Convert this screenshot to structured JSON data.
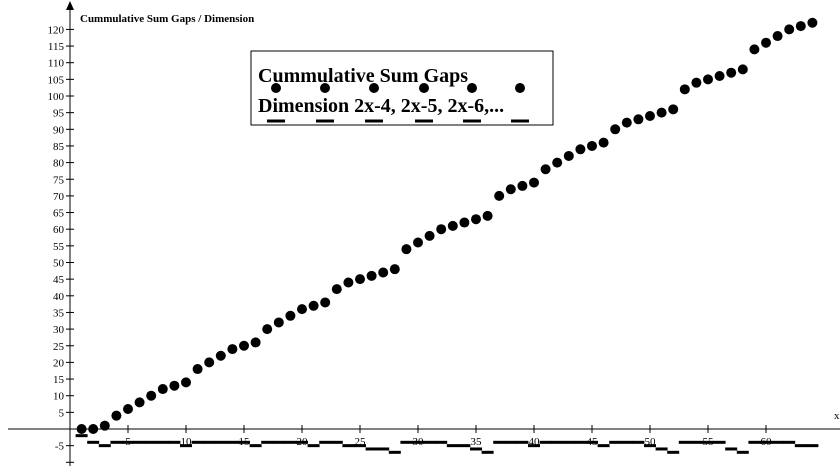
{
  "chart_data": {
    "type": "scatter",
    "title": "Cummulative Sum Gaps / Dimension",
    "xlabel": "x",
    "ylabel": "",
    "xlim": [
      -0.5,
      65
    ],
    "ylim": [
      -10,
      124
    ],
    "x_ticks": [
      5,
      10,
      15,
      20,
      25,
      30,
      35,
      40,
      45,
      50,
      55,
      60
    ],
    "y_ticks": [
      -5,
      5,
      10,
      15,
      20,
      25,
      30,
      35,
      40,
      45,
      50,
      55,
      60,
      65,
      70,
      75,
      80,
      85,
      90,
      95,
      100,
      105,
      110,
      115,
      120
    ],
    "legend": {
      "placement": "top-center",
      "lines": [
        "Cummulative Sum Gaps",
        "Dimension 2x-4, 2x-5, 2x-6,..."
      ]
    },
    "series": [
      {
        "name": "Cummulative Sum Gaps",
        "marker": "dot",
        "color": "#000000",
        "x": [
          1,
          2,
          3,
          4,
          5,
          6,
          7,
          8,
          9,
          10,
          11,
          12,
          13,
          14,
          15,
          16,
          17,
          18,
          19,
          20,
          21,
          22,
          23,
          24,
          25,
          26,
          27,
          28,
          29,
          30,
          31,
          32,
          33,
          34,
          35,
          36,
          37,
          38,
          39,
          40,
          41,
          42,
          43,
          44,
          45,
          46,
          47,
          48,
          49,
          50,
          51,
          52,
          53,
          54,
          55,
          56,
          57,
          58,
          59,
          60,
          61,
          62,
          63,
          64
        ],
        "y": [
          0,
          0,
          1,
          4,
          6,
          8,
          10,
          12,
          13,
          14,
          18,
          20,
          22,
          24,
          25,
          26,
          30,
          32,
          34,
          36,
          37,
          38,
          42,
          44,
          45,
          46,
          47,
          48,
          54,
          56,
          58,
          60,
          61,
          62,
          63,
          64,
          70,
          72,
          73,
          74,
          78,
          80,
          82,
          84,
          85,
          86,
          90,
          92,
          93,
          94,
          95,
          96,
          102,
          104,
          105,
          106,
          107,
          108,
          114,
          116,
          118,
          120,
          121,
          122
        ]
      },
      {
        "name": "Dimension 2x-4, 2x-5, 2x-6,...",
        "marker": "dash",
        "color": "#000000",
        "x": [
          1,
          2,
          3,
          4,
          5,
          6,
          7,
          8,
          9,
          10,
          11,
          12,
          13,
          14,
          15,
          16,
          17,
          18,
          19,
          20,
          21,
          22,
          23,
          24,
          25,
          26,
          27,
          28,
          29,
          30,
          31,
          32,
          33,
          34,
          35,
          36,
          37,
          38,
          39,
          40,
          41,
          42,
          43,
          44,
          45,
          46,
          47,
          48,
          49,
          50,
          51,
          52,
          53,
          54,
          55,
          56,
          57,
          58,
          59,
          60,
          61,
          62,
          63,
          64
        ],
        "y": [
          -2,
          -4,
          -5,
          -4,
          -4,
          -4,
          -4,
          -4,
          -4,
          -5,
          -4,
          -4,
          -4,
          -4,
          -4,
          -5,
          -4,
          -4,
          -4,
          -4,
          -5,
          -4,
          -4,
          -5,
          -5,
          -6,
          -6,
          -7,
          -4,
          -4,
          -4,
          -4,
          -5,
          -5,
          -6,
          -7,
          -4,
          -4,
          -4,
          -5,
          -4,
          -4,
          -4,
          -4,
          -4,
          -5,
          -4,
          -4,
          -4,
          -5,
          -6,
          -7,
          -4,
          -4,
          -4,
          -4,
          -6,
          -7,
          -4,
          -4,
          -4,
          -4,
          -5,
          -5
        ]
      }
    ]
  }
}
